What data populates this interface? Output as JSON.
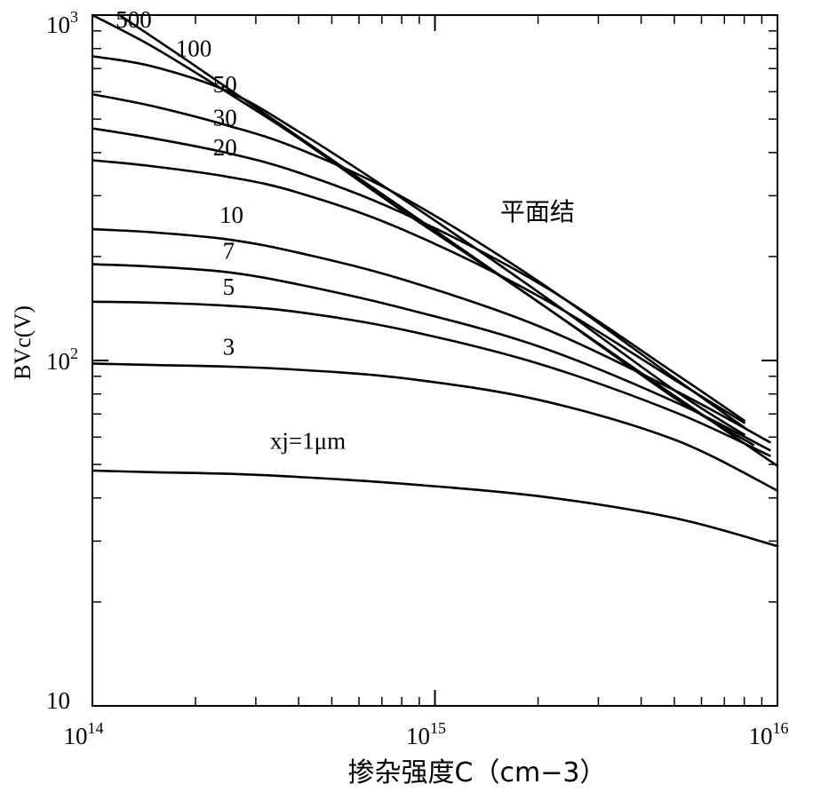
{
  "chart_data": {
    "type": "line",
    "title": "",
    "xlabel": "掺杂强度C（cm−3）",
    "ylabel": "BVc(V)",
    "x_scale": "log",
    "y_scale": "log",
    "xlim": [
      100000000000000.0,
      1e+16
    ],
    "ylim": [
      10,
      1000
    ],
    "grid": false,
    "x_ticks": [
      {
        "base": "10",
        "exp": "14",
        "value": 100000000000000.0
      },
      {
        "base": "10",
        "exp": "15",
        "value": 1000000000000000.0
      },
      {
        "base": "10",
        "exp": "16",
        "value": 1e+16
      }
    ],
    "y_ticks": [
      {
        "base": "10",
        "exp": "",
        "value": 10
      },
      {
        "base": "10",
        "exp": "2",
        "value": 100
      },
      {
        "base": "10",
        "exp": "3",
        "value": 1000
      }
    ],
    "series": [
      {
        "name": "平面结",
        "x": [
          120000000000000.0,
          200000000000000.0,
          400000000000000.0,
          1000000000000000.0,
          2000000000000000.0,
          4000000000000000.0,
          1e+16
        ],
        "y": [
          1000,
          712,
          444,
          238,
          148,
          92,
          49.5
        ]
      },
      {
        "name": "500",
        "x": [
          100000000000000.0,
          150000000000000.0,
          250000000000000.0,
          400000000000000.0,
          800000000000000.0,
          2000000000000000.0,
          5000000000000000.0,
          8500000000000000.0
        ],
        "y": [
          1000,
          810,
          594,
          440,
          272,
          148,
          78,
          57
        ]
      },
      {
        "name": "100",
        "x": [
          100000000000000.0,
          150000000000000.0,
          250000000000000.0,
          400000000000000.0,
          800000000000000.0,
          2000000000000000.0,
          5000000000000000.0,
          8000000000000000.0
        ],
        "y": [
          760,
          710,
          600,
          460,
          295,
          158,
          82,
          61
        ]
      },
      {
        "name": "50",
        "x": [
          100000000000000.0,
          150000000000000.0,
          250000000000000.0,
          400000000000000.0,
          800000000000000.0,
          2000000000000000.0,
          5000000000000000.0,
          8000000000000000.0
        ],
        "y": [
          590,
          545,
          478,
          410,
          298,
          170,
          89,
          64
        ]
      },
      {
        "name": "30",
        "x": [
          100000000000000.0,
          150000000000000.0,
          250000000000000.0,
          400000000000000.0,
          800000000000000.0,
          2000000000000000.0,
          5000000000000000.0,
          8000000000000000.0
        ],
        "y": [
          470,
          440,
          398,
          350,
          268,
          168,
          92,
          67
        ]
      },
      {
        "name": "20",
        "x": [
          100000000000000.0,
          150000000000000.0,
          250000000000000.0,
          400000000000000.0,
          800000000000000.0,
          2000000000000000.0,
          5000000000000000.0,
          8000000000000000.0
        ],
        "y": [
          380,
          365,
          340,
          306,
          240,
          154,
          88,
          66
        ]
      },
      {
        "name": "10",
        "x": [
          100000000000000.0,
          150000000000000.0,
          250000000000000.0,
          400000000000000.0,
          800000000000000.0,
          2000000000000000.0,
          5000000000000000.0,
          9500000000000000.0
        ],
        "y": [
          240,
          235,
          224,
          205,
          172,
          126,
          82,
          58
        ]
      },
      {
        "name": "7",
        "x": [
          100000000000000.0,
          150000000000000.0,
          250000000000000.0,
          400000000000000.0,
          800000000000000.0,
          2000000000000000.0,
          5000000000000000.0,
          9500000000000000.0
        ],
        "y": [
          190,
          187,
          180,
          166,
          142,
          110,
          76,
          55
        ]
      },
      {
        "name": "5",
        "x": [
          100000000000000.0,
          150000000000000.0,
          250000000000000.0,
          400000000000000.0,
          800000000000000.0,
          2000000000000000.0,
          5000000000000000.0,
          9500000000000000.0
        ],
        "y": [
          148,
          147,
          144,
          138,
          123,
          98,
          71,
          53
        ]
      },
      {
        "name": "3",
        "x": [
          100000000000000.0,
          150000000000000.0,
          250000000000000.0,
          400000000000000.0,
          800000000000000.0,
          2000000000000000.0,
          5000000000000000.0,
          1e+16
        ],
        "y": [
          98,
          97,
          96,
          94,
          89,
          77,
          59,
          42
        ]
      },
      {
        "name": "xj=1μm",
        "x": [
          100000000000000.0,
          150000000000000.0,
          250000000000000.0,
          400000000000000.0,
          800000000000000.0,
          2000000000000000.0,
          5000000000000000.0,
          1e+16
        ],
        "y": [
          48,
          47.5,
          47,
          46,
          44,
          40.5,
          35,
          29
        ]
      }
    ]
  }
}
